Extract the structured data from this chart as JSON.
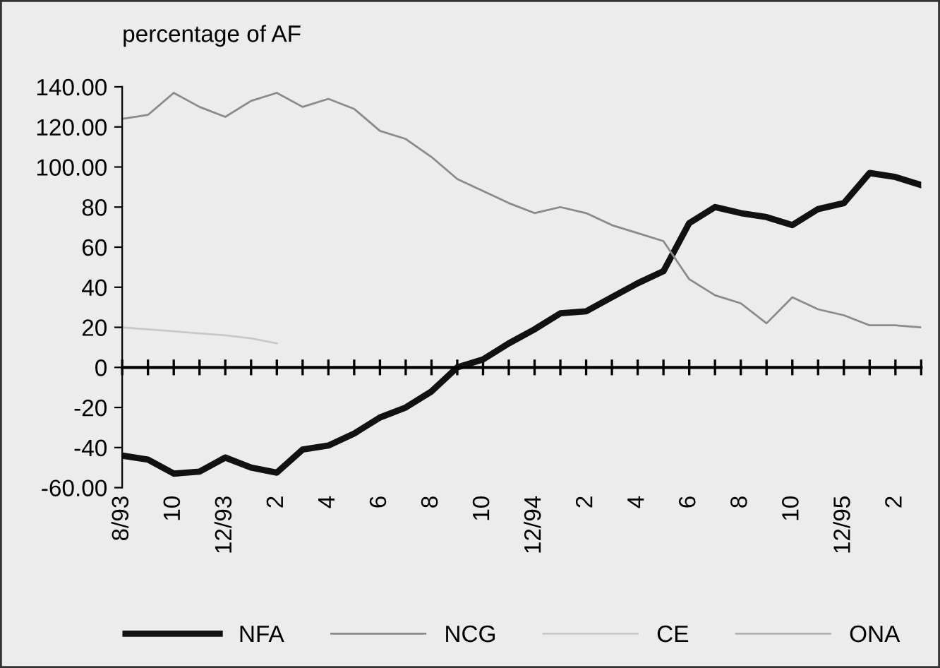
{
  "chart_data": {
    "type": "line",
    "ylabel": "percentage of AF",
    "categories": [
      "8/93",
      null,
      "10",
      null,
      "12/93",
      null,
      "2",
      null,
      "4",
      null,
      "6",
      null,
      "8",
      null,
      "10",
      null,
      "12/94",
      null,
      "2",
      null,
      "4",
      null,
      "6",
      null,
      "8",
      null,
      "10",
      null,
      "12/95",
      null,
      "2",
      null
    ],
    "series": [
      {
        "name": "NFA",
        "color": "#111111",
        "values": [
          -44,
          -46,
          -53,
          -52,
          -45,
          -50,
          -52.5,
          -41,
          -39,
          -33,
          -25,
          -20,
          -12,
          0,
          4,
          12,
          19,
          27,
          28,
          35,
          42,
          48,
          72,
          80,
          77,
          75,
          71,
          79,
          82,
          97,
          95,
          91
        ]
      },
      {
        "name": "NCG",
        "color": "#8a8a8a",
        "values": [
          124,
          126,
          137,
          130,
          125,
          133,
          137,
          130,
          134,
          129,
          118,
          114,
          105,
          94,
          88,
          82,
          77,
          80,
          77,
          71,
          67,
          63,
          44,
          36,
          32,
          22,
          35,
          29,
          26,
          21,
          21,
          20
        ]
      },
      {
        "name": "CE",
        "color": "#c8c8c8",
        "values": [
          20,
          19,
          18,
          17,
          16,
          14.5,
          12,
          null,
          null,
          null,
          null,
          null,
          null,
          null,
          null,
          null,
          null,
          null,
          null,
          null,
          null,
          null,
          null,
          null,
          null,
          null,
          null,
          null,
          null,
          null,
          null,
          null
        ]
      },
      {
        "name": "ONA",
        "color": "#b0b0b0",
        "values": [
          null,
          null,
          null,
          null,
          null,
          null,
          null,
          null,
          null,
          null,
          null,
          null,
          null,
          null,
          null,
          null,
          null,
          null,
          null,
          null,
          null,
          null,
          null,
          null,
          null,
          null,
          null,
          null,
          null,
          null,
          null,
          null
        ]
      }
    ],
    "ylim": [
      -60,
      140
    ],
    "yticks": [
      {
        "value": 140,
        "label": "140.00"
      },
      {
        "value": 120,
        "label": "120.00"
      },
      {
        "value": 100,
        "label": "100.00"
      },
      80,
      60,
      40,
      20,
      0,
      -20,
      -40,
      {
        "value": -60,
        "label": "-60.00"
      }
    ],
    "legend": "bottom right",
    "marker": "none",
    "line_style": "solid"
  }
}
